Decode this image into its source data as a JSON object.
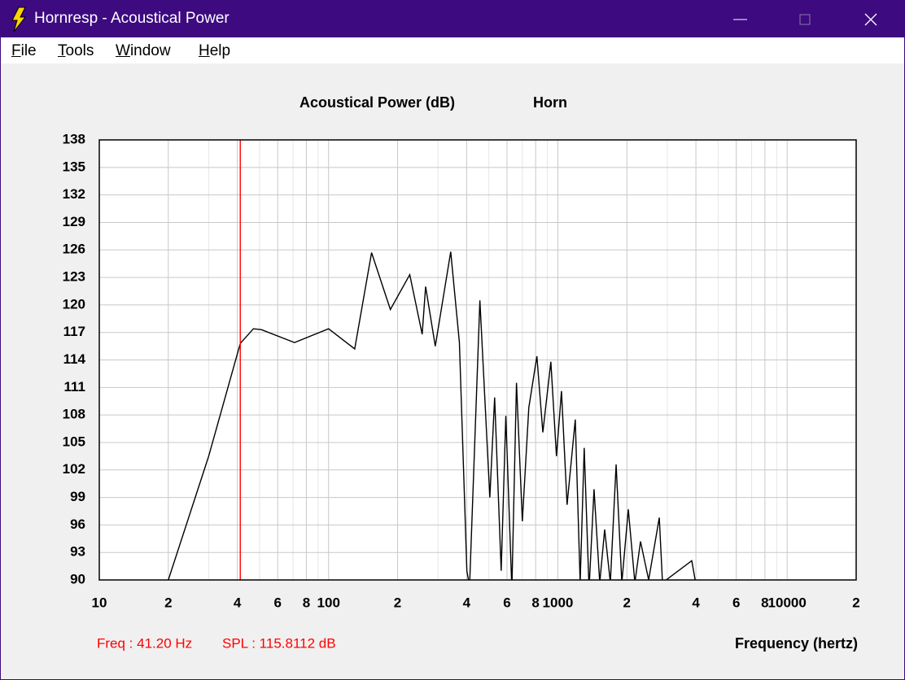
{
  "window": {
    "title": "Hornresp - Acoustical Power",
    "menu": [
      "File",
      "Tools",
      "Window",
      "Help"
    ]
  },
  "chart_data": {
    "type": "line",
    "title": "Acoustical Power (dB)",
    "subtitle": "Horn",
    "x_label": "Frequency (hertz)",
    "xscale": "log",
    "grid": true,
    "color": "#000000",
    "xlim": [
      10,
      20000
    ],
    "ylim": [
      90,
      138
    ],
    "xticks": [
      10,
      {
        "value": 20,
        "label": "2"
      },
      {
        "value": 40,
        "label": "4"
      },
      {
        "value": 60,
        "label": "6"
      },
      {
        "value": 80,
        "label": "8"
      },
      100,
      {
        "value": 200,
        "label": "2"
      },
      {
        "value": 400,
        "label": "4"
      },
      {
        "value": 600,
        "label": "6"
      },
      {
        "value": 800,
        "label": "8"
      },
      1000,
      {
        "value": 2000,
        "label": "2"
      },
      {
        "value": 4000,
        "label": "4"
      },
      {
        "value": 6000,
        "label": "6"
      },
      {
        "value": 8000,
        "label": "8"
      },
      10000,
      {
        "value": 20000,
        "label": "2"
      }
    ],
    "xminor": [
      30,
      50,
      70,
      90,
      300,
      500,
      700,
      900,
      3000,
      5000,
      7000,
      9000
    ],
    "yticks": [
      90,
      93,
      96,
      99,
      102,
      105,
      108,
      111,
      114,
      117,
      120,
      123,
      126,
      129,
      132,
      135,
      138
    ],
    "x": [
      20,
      30,
      41.2,
      47,
      51,
      71,
      100,
      130,
      154,
      186,
      226,
      256,
      265,
      292,
      341,
      372,
      401,
      412,
      457,
      505,
      530,
      566,
      593,
      630,
      660,
      700,
      747,
      810,
      860,
      932,
      986,
      1037,
      1097,
      1191,
      1251,
      1303,
      1368,
      1438,
      1523,
      1600,
      1694,
      1795,
      1901,
      2029,
      2167,
      2293,
      2489,
      2769,
      2860,
      3837,
      3990
    ],
    "values": [
      90,
      103.5,
      115.8,
      117.4,
      117.3,
      115.9,
      117.4,
      115.2,
      125.7,
      119.5,
      123.3,
      116.8,
      122,
      115.5,
      125.8,
      115.9,
      91,
      89.3,
      120.5,
      99,
      109.9,
      91,
      107.9,
      89,
      111.5,
      96.4,
      108.8,
      114.4,
      106.1,
      113.8,
      103.5,
      110.6,
      98.2,
      107.5,
      89.7,
      104.4,
      89,
      99.9,
      89.7,
      95.5,
      89.7,
      102.6,
      89.7,
      97.7,
      89.7,
      94.2,
      90,
      96.8,
      89.7,
      92.1,
      89.7
    ],
    "cursor": {
      "x": 41.2,
      "color": "#ff0000",
      "freq_label": "Freq : 41.20 Hz",
      "spl_label": "SPL : 115.8112 dB"
    }
  }
}
